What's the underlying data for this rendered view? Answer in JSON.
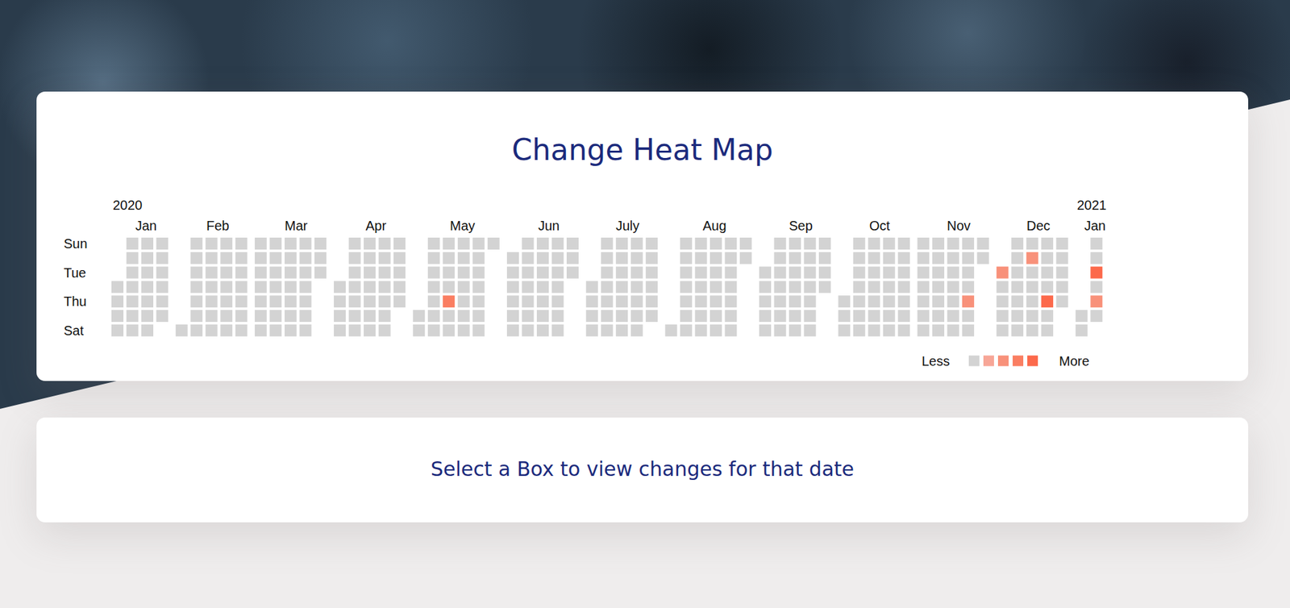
{
  "chart_data": {
    "type": "calendar_heatmap",
    "title": "Change Heat Map",
    "day_labels": [
      "Sun",
      null,
      "Tue",
      null,
      "Thu",
      null,
      "Sat"
    ],
    "legend_low": "Less",
    "legend_high": "More",
    "colors": [
      "#d3d3d3",
      "#f7a697",
      "#f8917a",
      "#fa7e62",
      "#fc694b"
    ],
    "months": [
      {
        "label": "Jan",
        "year": 2020,
        "month": 1,
        "first_day": 8,
        "values": [
          0,
          0,
          0,
          0,
          0,
          0,
          0,
          0,
          0,
          0,
          0,
          0,
          0,
          0,
          0,
          0,
          0,
          0,
          0,
          0,
          0,
          0,
          0,
          0
        ]
      },
      {
        "label": "Feb",
        "year": 2020,
        "month": 2,
        "first_day": 1,
        "values": [
          0,
          0,
          0,
          0,
          0,
          0,
          0,
          0,
          0,
          0,
          0,
          0,
          0,
          0,
          0,
          0,
          0,
          0,
          0,
          0,
          0,
          0,
          0,
          0,
          0,
          0,
          0,
          0,
          0
        ]
      },
      {
        "label": "Mar",
        "year": 2020,
        "month": 3,
        "first_day": 1,
        "values": [
          0,
          0,
          0,
          0,
          0,
          0,
          0,
          0,
          0,
          0,
          0,
          0,
          0,
          0,
          0,
          0,
          0,
          0,
          0,
          0,
          0,
          0,
          0,
          0,
          0,
          0,
          0,
          0,
          0,
          0,
          0
        ]
      },
      {
        "label": "Apr",
        "year": 2020,
        "month": 4,
        "first_day": 1,
        "values": [
          0,
          0,
          0,
          0,
          0,
          0,
          0,
          0,
          0,
          0,
          0,
          0,
          0,
          0,
          0,
          0,
          0,
          0,
          0,
          0,
          0,
          0,
          0,
          0,
          0,
          0,
          0,
          0,
          0,
          0
        ]
      },
      {
        "label": "May",
        "year": 2020,
        "month": 5,
        "first_day": 1,
        "values": [
          0,
          0,
          0,
          0,
          0,
          0,
          0,
          0,
          0,
          0,
          0,
          0,
          0,
          3,
          0,
          0,
          0,
          0,
          0,
          0,
          0,
          0,
          0,
          0,
          0,
          0,
          0,
          0,
          0,
          0,
          0
        ]
      },
      {
        "label": "Jun",
        "year": 2020,
        "month": 6,
        "first_day": 1,
        "values": [
          0,
          0,
          0,
          0,
          0,
          0,
          0,
          0,
          0,
          0,
          0,
          0,
          0,
          0,
          0,
          0,
          0,
          0,
          0,
          0,
          0,
          0,
          0,
          0,
          0,
          0,
          0,
          0,
          0,
          0
        ]
      },
      {
        "label": "July",
        "year": 2020,
        "month": 7,
        "first_day": 1,
        "values": [
          0,
          0,
          0,
          0,
          0,
          0,
          0,
          0,
          0,
          0,
          0,
          0,
          0,
          0,
          0,
          0,
          0,
          0,
          0,
          0,
          0,
          0,
          0,
          0,
          0,
          0,
          0,
          0,
          0,
          0,
          0
        ]
      },
      {
        "label": "Aug",
        "year": 2020,
        "month": 8,
        "first_day": 1,
        "values": [
          0,
          0,
          0,
          0,
          0,
          0,
          0,
          0,
          0,
          0,
          0,
          0,
          0,
          0,
          0,
          0,
          0,
          0,
          0,
          0,
          0,
          0,
          0,
          0,
          0,
          0,
          0,
          0,
          0,
          0,
          0
        ]
      },
      {
        "label": "Sep",
        "year": 2020,
        "month": 9,
        "first_day": 1,
        "values": [
          0,
          0,
          0,
          0,
          0,
          0,
          0,
          0,
          0,
          0,
          0,
          0,
          0,
          0,
          0,
          0,
          0,
          0,
          0,
          0,
          0,
          0,
          0,
          0,
          0,
          0,
          0,
          0,
          0,
          0
        ]
      },
      {
        "label": "Oct",
        "year": 2020,
        "month": 10,
        "first_day": 1,
        "values": [
          0,
          0,
          0,
          0,
          0,
          0,
          0,
          0,
          0,
          0,
          0,
          0,
          0,
          0,
          0,
          0,
          0,
          0,
          0,
          0,
          0,
          0,
          0,
          0,
          0,
          0,
          0,
          0,
          0,
          0,
          0
        ]
      },
      {
        "label": "Nov",
        "year": 2020,
        "month": 11,
        "first_day": 1,
        "values": [
          0,
          0,
          0,
          0,
          0,
          0,
          0,
          0,
          0,
          0,
          0,
          0,
          0,
          0,
          0,
          0,
          0,
          0,
          0,
          0,
          0,
          0,
          0,
          0,
          0,
          2,
          0,
          0,
          0,
          0
        ]
      },
      {
        "label": "Dec",
        "year": 2020,
        "month": 12,
        "first_day": 1,
        "values": [
          2,
          0,
          0,
          0,
          0,
          0,
          0,
          0,
          0,
          0,
          0,
          0,
          0,
          2,
          0,
          0,
          0,
          0,
          0,
          0,
          0,
          0,
          0,
          4,
          0,
          0,
          0,
          0,
          0,
          0,
          0
        ]
      },
      {
        "label": "Jan",
        "year": 2021,
        "month": 1,
        "first_day": 1,
        "values": [
          0,
          0,
          0,
          0,
          4,
          0,
          2,
          0
        ]
      }
    ]
  },
  "panel": {
    "text": "Select a Box to view changes for that date"
  }
}
